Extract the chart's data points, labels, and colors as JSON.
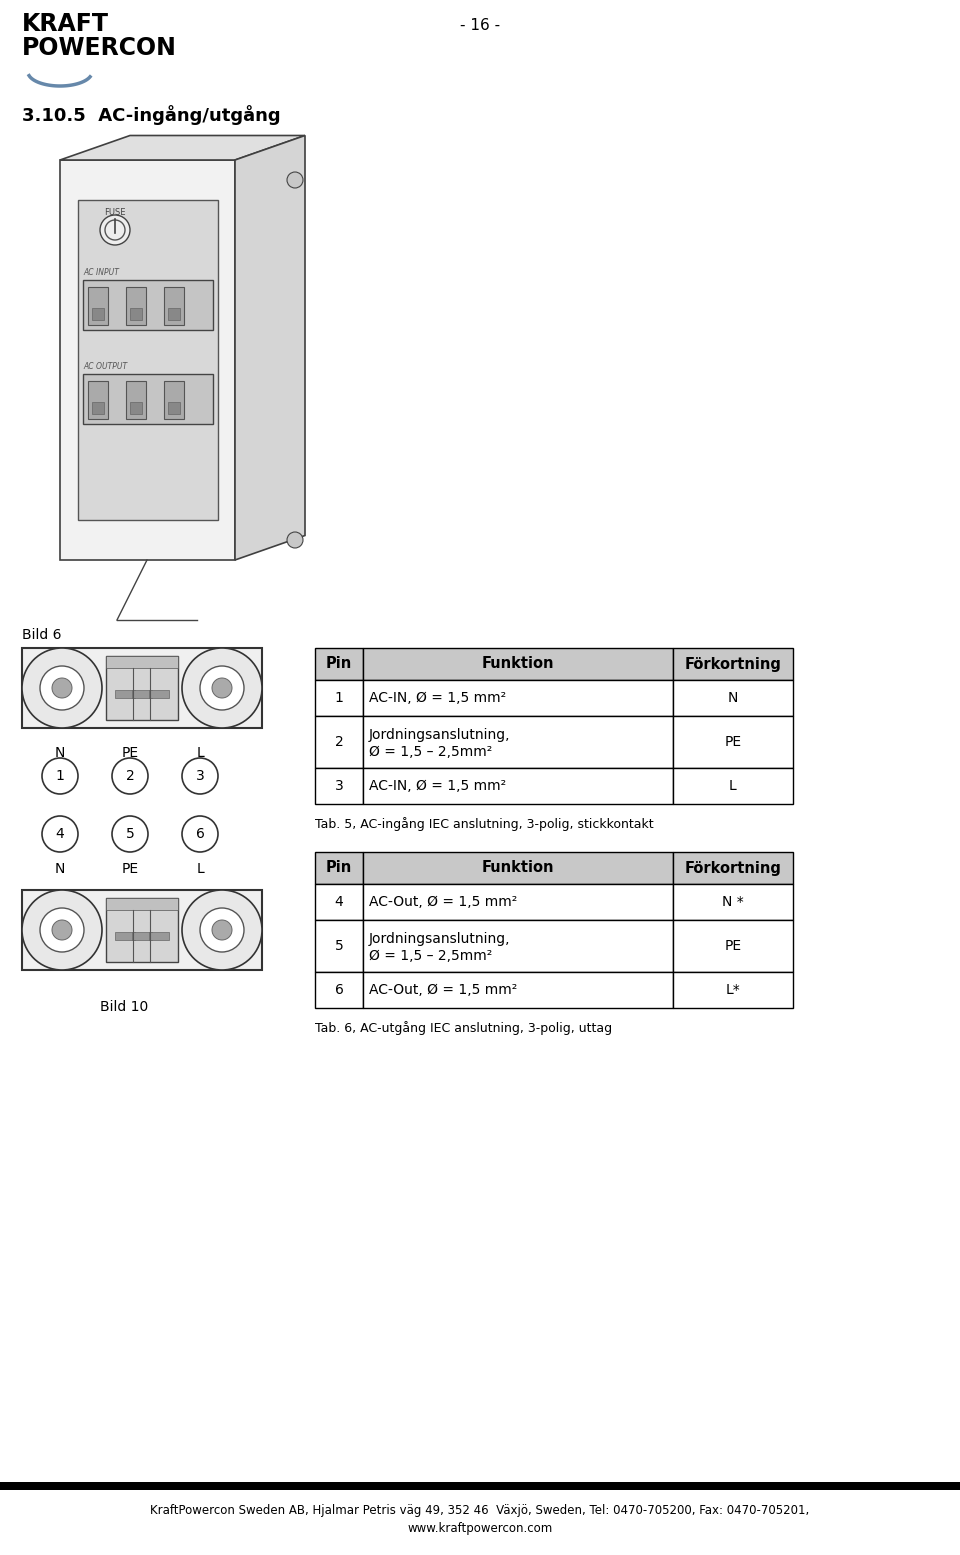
{
  "page_number": "- 16 -",
  "section_title": "3.10.5  AC-ingång/utgång",
  "bild6_label": "Bild 6",
  "bild10_label": "Bild 10",
  "table1_caption": "Tab. 5, AC-ingång IEC anslutning, 3-polig, stickkontakt",
  "table2_caption": "Tab. 6, AC-utgång IEC anslutning, 3-polig, uttag",
  "table1_headers": [
    "Pin",
    "Funktion",
    "Förkortning"
  ],
  "table1_rows": [
    [
      "1",
      "AC-IN, Ø = 1,5 mm²",
      "N"
    ],
    [
      "2",
      "Jordningsanslutning,\nØ = 1,5 – 2,5mm²",
      "PE"
    ],
    [
      "3",
      "AC-IN, Ø = 1,5 mm²",
      "L"
    ]
  ],
  "table2_headers": [
    "Pin",
    "Funktion",
    "Förkortning"
  ],
  "table2_rows": [
    [
      "4",
      "AC-Out, Ø = 1,5 mm²",
      "N *"
    ],
    [
      "5",
      "Jordningsanslutning,\nØ = 1,5 – 2,5mm²",
      "PE"
    ],
    [
      "6",
      "AC-Out, Ø = 1,5 mm²",
      "L*"
    ]
  ],
  "footer_line1": "KraftPowercon Sweden AB, Hjalmar Petris väg 49, 352 46  Växjö, Sweden, Tel: 0470-705200, Fax: 0470-705201,",
  "footer_line2": "www.kraftpowercon.com",
  "bg_color": "#ffffff",
  "text_color": "#000000",
  "table_header_bg": "#c8c8c8",
  "table_row_bg": "#f0f0f0",
  "table_border_color": "#000000",
  "logo_text_kraft": "KRAFT",
  "logo_text_powercon": "POWERCON",
  "connector_fill": "#e8e8e8",
  "connector_border": "#333333",
  "pin_labels_top": [
    "N",
    "PE",
    "L"
  ],
  "pin_nums_top": [
    "1",
    "2",
    "3"
  ],
  "pin_labels_bot": [
    "N",
    "PE",
    "L"
  ],
  "pin_nums_bot": [
    "4",
    "5",
    "6"
  ]
}
